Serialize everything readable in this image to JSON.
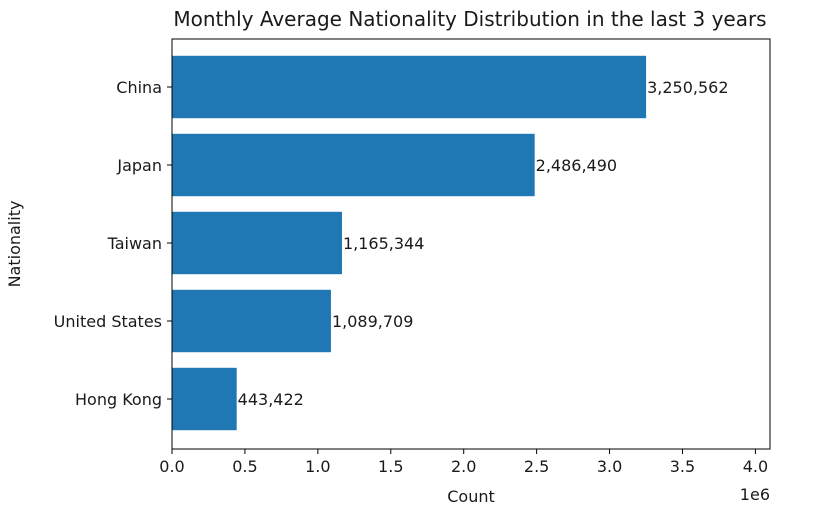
{
  "chart_data": {
    "type": "bar",
    "orientation": "horizontal",
    "title": "Monthly Average Nationality Distribution in the last 3 years",
    "xlabel": "Count",
    "ylabel": "Nationality",
    "x_offset_label": "1e6",
    "xlim": [
      0,
      4100000
    ],
    "x_ticks": [
      0,
      500000,
      1000000,
      1500000,
      2000000,
      2500000,
      3000000,
      3500000,
      4000000
    ],
    "x_tick_labels": [
      "0.0",
      "0.5",
      "1.0",
      "1.5",
      "2.0",
      "2.5",
      "3.0",
      "3.5",
      "4.0"
    ],
    "categories": [
      "China",
      "Japan",
      "Taiwan",
      "United States",
      "Hong Kong"
    ],
    "values": [
      3250562,
      2486490,
      1165344,
      1089709,
      443422
    ],
    "value_labels": [
      "3,250,562",
      "2,486,490",
      "1,165,344",
      "1,089,709",
      "443,422"
    ],
    "bar_color": "#1f77b4",
    "grid": false
  }
}
